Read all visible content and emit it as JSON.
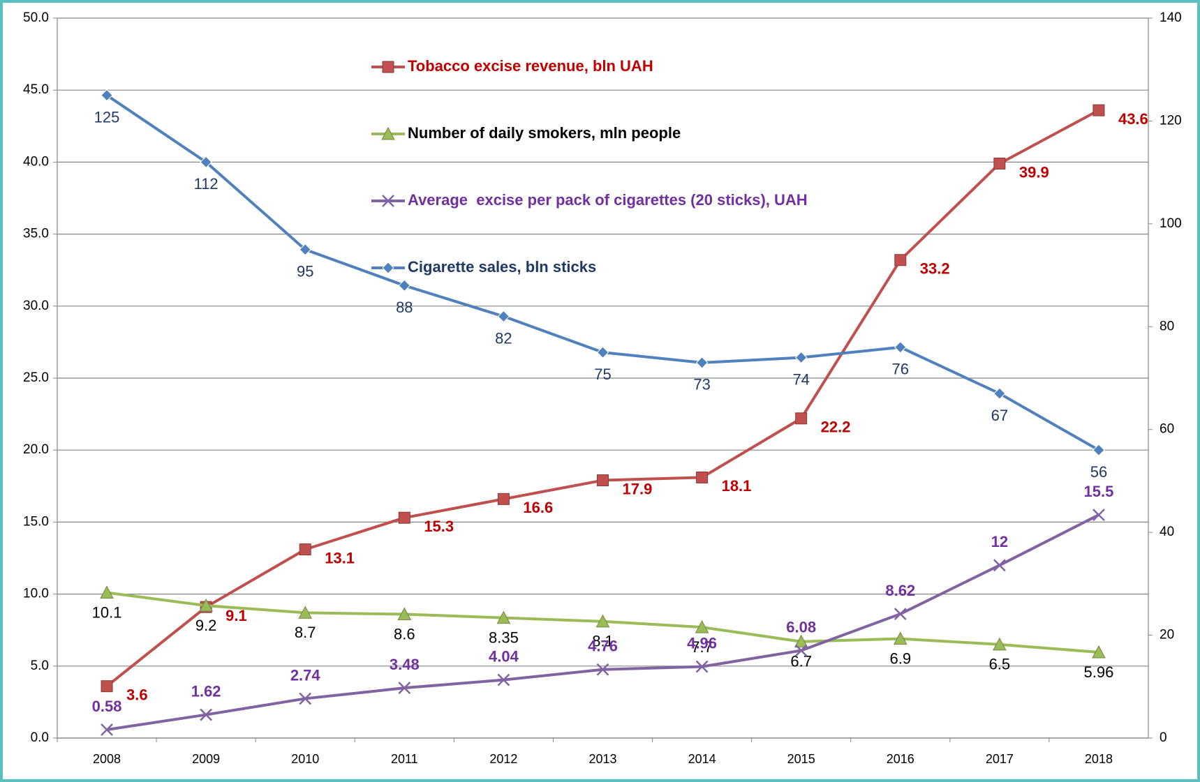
{
  "chart_data": {
    "type": "line",
    "categories": [
      "2008",
      "2009",
      "2010",
      "2011",
      "2012",
      "2013",
      "2014",
      "2015",
      "2016",
      "2017",
      "2018"
    ],
    "ylim": [
      0,
      50
    ],
    "yticks": [
      {
        "value": 0,
        "label": "0.0"
      },
      {
        "value": 5,
        "label": "5.0"
      },
      {
        "value": 10,
        "label": "10.0"
      },
      {
        "value": 15,
        "label": "15.0"
      },
      {
        "value": 20,
        "label": "20.0"
      },
      {
        "value": 25,
        "label": "25.0"
      },
      {
        "value": 30,
        "label": "30.0"
      },
      {
        "value": 35,
        "label": "35.0"
      },
      {
        "value": 40,
        "label": "40.0"
      },
      {
        "value": 45,
        "label": "45.0"
      },
      {
        "value": 50,
        "label": "50.0"
      }
    ],
    "y2lim": [
      0,
      140
    ],
    "y2ticks": [
      0,
      20,
      40,
      60,
      80,
      100,
      120,
      140
    ],
    "grid": true,
    "legend": "top-center",
    "series": [
      {
        "name": "Tobacco excise revenue, bln UAH",
        "color": "#c0504d",
        "label_color": "#c00000",
        "marker": "square",
        "values": [
          3.6,
          9.1,
          13.1,
          15.3,
          16.6,
          17.9,
          18.1,
          22.2,
          33.2,
          39.9,
          43.6
        ]
      },
      {
        "name": "Number of daily smokers, mln people",
        "color": "#9bbb59",
        "label_color": "#000000",
        "marker": "triangle",
        "values": [
          10.1,
          9.2,
          8.7,
          8.6,
          8.35,
          8.1,
          7.7,
          6.7,
          6.9,
          6.5,
          5.96
        ]
      },
      {
        "name": "Average  excise per pack of cigarettes (20 sticks), UAH",
        "color": "#8064a2",
        "label_color": "#7030a0",
        "marker": "x",
        "values": [
          0.58,
          1.62,
          2.74,
          3.48,
          4.04,
          4.76,
          4.96,
          6.08,
          8.62,
          12,
          15.5
        ]
      },
      {
        "name": "Cigarette sales, bln sticks",
        "color": "#4f81bd",
        "label_color": "#1f3864",
        "marker": "diamond",
        "axis": "y2",
        "values": [
          125,
          112,
          95,
          88,
          82,
          75,
          73,
          74,
          76,
          67,
          56
        ]
      }
    ]
  }
}
